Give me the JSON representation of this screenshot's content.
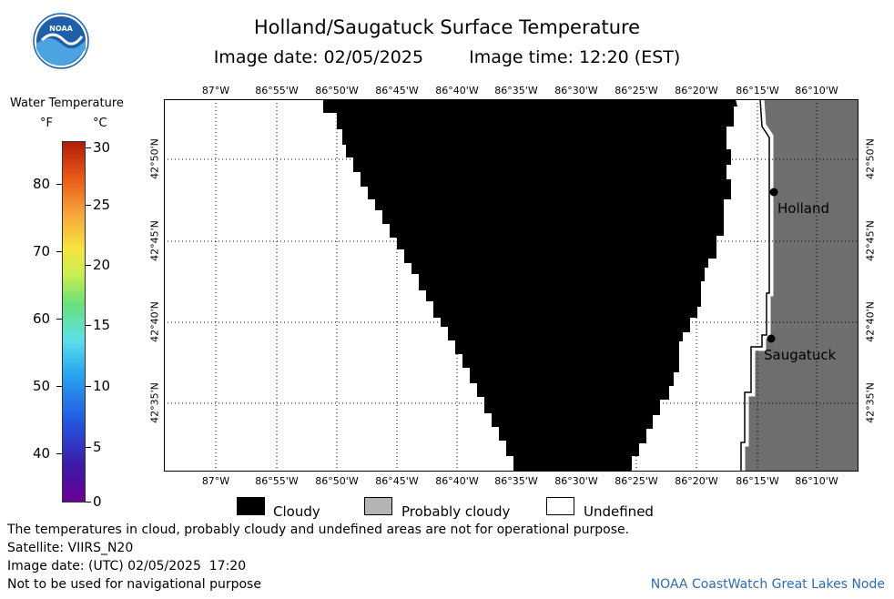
{
  "header": {
    "title": "Holland/Saugatuck Surface Temperature",
    "image_date": "Image date: 02/05/2025",
    "image_time": "Image time: 12:20 (EST)"
  },
  "logo": {
    "text": "NOAA"
  },
  "colorbar": {
    "title": "Water Temperature",
    "unit_f": "°F",
    "unit_c": "°C",
    "f_ticks": [
      "80",
      "70",
      "60",
      "50",
      "40"
    ],
    "c_ticks": [
      "30",
      "25",
      "20",
      "15",
      "10",
      "5",
      "0"
    ]
  },
  "map": {
    "lon_labels": [
      "87°W",
      "86°55'W",
      "86°50'W",
      "86°45'W",
      "86°40'W",
      "86°35'W",
      "86°30'W",
      "86°25'W",
      "86°20'W",
      "86°15'W",
      "86°10'W"
    ],
    "lat_labels": [
      "42°50'N",
      "42°45'N",
      "42°40'N",
      "42°35'N"
    ],
    "cities": [
      {
        "name": "Holland"
      },
      {
        "name": "Saugatuck"
      }
    ],
    "colors": {
      "cloudy": "#000000",
      "land": "#6e6e6e",
      "undefined": "#ffffff"
    }
  },
  "legend": {
    "cloudy": "Cloudy",
    "probably_cloudy": "Probably cloudy",
    "undefined": "Undefined"
  },
  "footer": {
    "note": "The temperatures in cloud, probably cloudy and undefined areas are not for operational purpose.",
    "satellite": "Satellite: VIIRS_N20",
    "utc_date": "Image date: (UTC) 02/05/2025  17:20",
    "nav_note": "Not to be used for navigational purpose",
    "credit": "NOAA CoastWatch Great Lakes Node"
  }
}
